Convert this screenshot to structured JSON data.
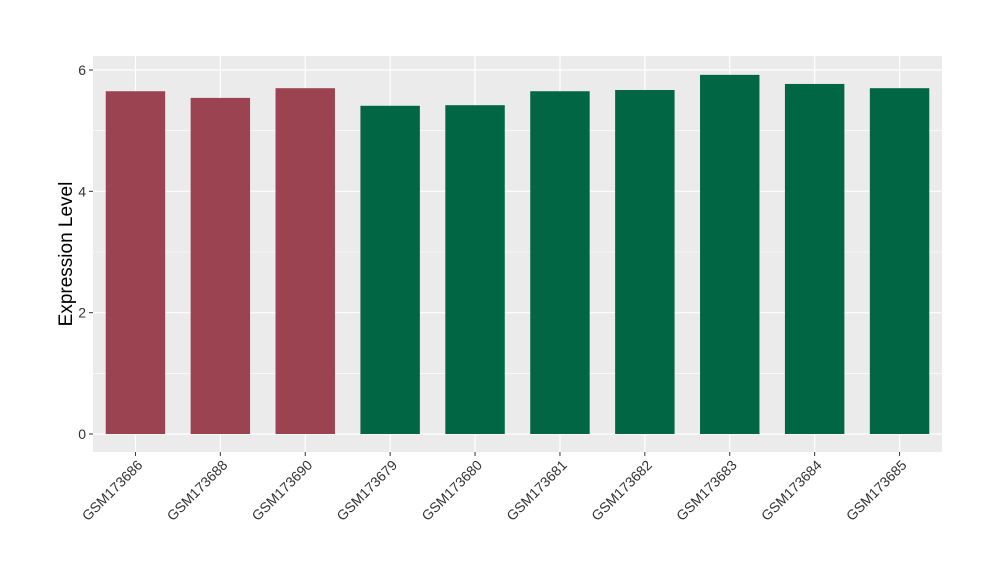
{
  "chart_data": {
    "type": "bar",
    "title": "",
    "xlabel": "",
    "ylabel": "Expression Level",
    "ylim": [
      -0.28,
      6.3
    ],
    "yticks": [
      0,
      2,
      4,
      6
    ],
    "grid": true,
    "legend": "none",
    "categories": [
      "GSM173686",
      "GSM173688",
      "GSM173690",
      "GSM173679",
      "GSM173680",
      "GSM173681",
      "GSM173682",
      "GSM173683",
      "GSM173684",
      "GSM173685"
    ],
    "values": [
      5.65,
      5.54,
      5.7,
      5.41,
      5.42,
      5.65,
      5.67,
      5.92,
      5.77,
      5.7
    ],
    "bar_colors": [
      "#9b4350",
      "#9b4350",
      "#9b4350",
      "#006644",
      "#006644",
      "#006644",
      "#006644",
      "#006644",
      "#006644",
      "#006644"
    ],
    "panel_background": "#ebebeb"
  }
}
